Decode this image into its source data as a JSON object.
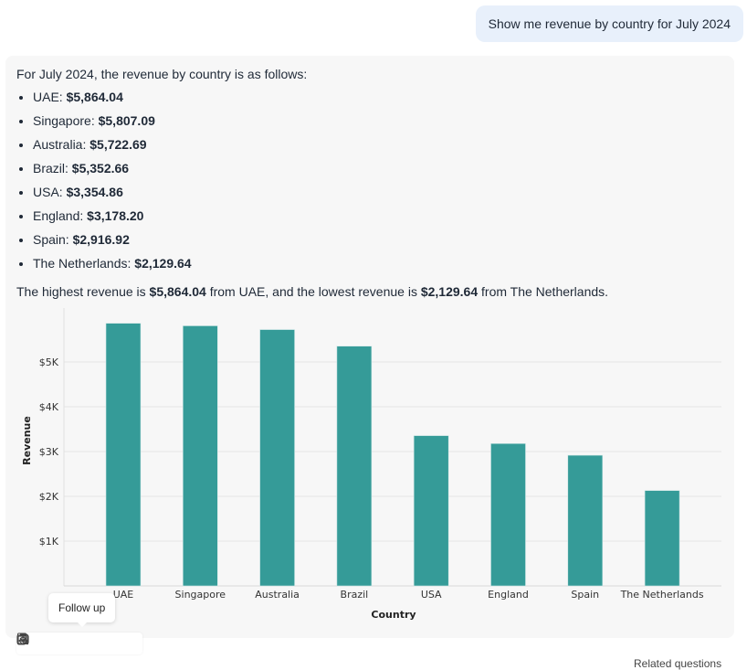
{
  "user_message": "Show me revenue by country for July 2024",
  "answer": {
    "intro": "For July 2024, the revenue by country is as follows:",
    "items": [
      {
        "label": "UAE: ",
        "value": "$5,864.04"
      },
      {
        "label": "Singapore: ",
        "value": "$5,807.09"
      },
      {
        "label": "Australia: ",
        "value": "$5,722.69"
      },
      {
        "label": "Brazil: ",
        "value": "$5,352.66"
      },
      {
        "label": "USA: ",
        "value": "$3,354.86"
      },
      {
        "label": "England: ",
        "value": "$3,178.20"
      },
      {
        "label": "Spain: ",
        "value": "$2,916.92"
      },
      {
        "label": "The Netherlands: ",
        "value": "$2,129.64"
      }
    ],
    "summary": {
      "p1": "The highest revenue is ",
      "v1": "$5,864.04",
      "p2": " from UAE, and the lowest revenue is ",
      "v2": "$2,129.64",
      "p3": " from The Netherlands."
    }
  },
  "chart_data": {
    "type": "bar",
    "categories": [
      "UAE",
      "Singapore",
      "Australia",
      "Brazil",
      "USA",
      "England",
      "Spain",
      "The Netherlands"
    ],
    "values": [
      5864.04,
      5807.09,
      5722.69,
      5352.66,
      3354.86,
      3178.2,
      2916.92,
      2129.64
    ],
    "xlabel": "Country",
    "ylabel": "Revenue",
    "yticks": [
      {
        "v": 1000,
        "label": "$1K"
      },
      {
        "v": 2000,
        "label": "$2K"
      },
      {
        "v": 3000,
        "label": "$3K"
      },
      {
        "v": 4000,
        "label": "$4K"
      },
      {
        "v": 5000,
        "label": "$5K"
      }
    ],
    "ylim": [
      0,
      6200
    ],
    "grid": true,
    "color": "#359b98"
  },
  "toolbar": {
    "tooltip": "Follow up",
    "icons": [
      "view-sql-icon",
      "screenshot-icon",
      "follow-up-icon",
      "copy-icon",
      "download-icon"
    ]
  },
  "related": "Related questions"
}
